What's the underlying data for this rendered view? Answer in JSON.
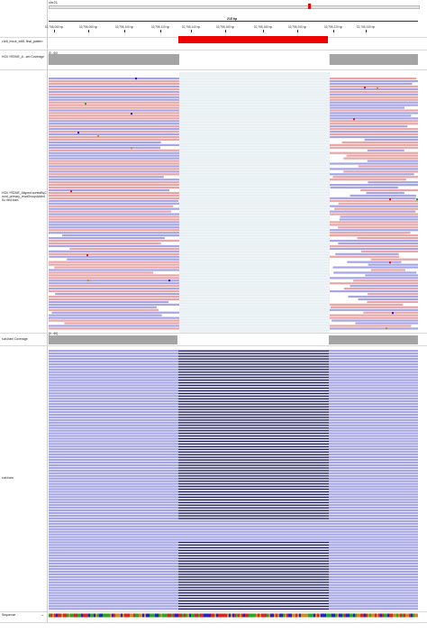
{
  "header": {
    "locus": "chr21",
    "scale_label": "215 bp",
    "ticks": [
      "32,755,060 bp",
      "32,755,080 bp",
      "32,755,100 bp",
      "32,755,120 bp",
      "32,755,140 bp",
      "32,755,160 bp",
      "32,755,180 bp",
      "32,755,200 bp",
      "32,755,220 bp",
      "32,755,240 bp"
    ]
  },
  "tracks": {
    "bed_label": "chr6_mock_edit1 final_pattern",
    "coverage1_label": "HG0 YRDNE_A...am Coverage",
    "coverage1_range": "[0 - 60]",
    "alignment1_label": "HG0 YRDNE_Aligned.sortedByCoord_primary_readGroupAddedSo rted.bam",
    "coverage2_label": "sub.bam Coverage",
    "coverage2_range": "[0 - 60]",
    "alignment2_label": "sub.bam",
    "sequence_label": "Sequence"
  },
  "colors": {
    "forward_read": "#e9a5a5",
    "reverse_read": "#a5a5e6",
    "bed_feature": "#ee0000",
    "coverage": "#a9a9a9",
    "deletion_line": "#000000",
    "mismatch_a": "#22aa22",
    "mismatch_c": "#2222cc",
    "mismatch_g": "#d38a1c",
    "mismatch_t": "#dd2222"
  }
}
